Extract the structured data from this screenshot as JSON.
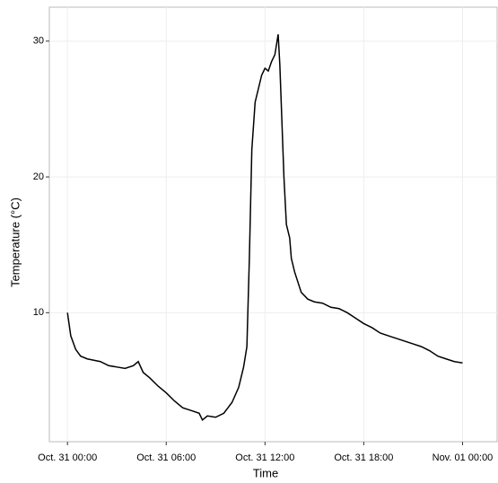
{
  "chart_data": {
    "type": "line",
    "x_label": "Time",
    "y_label": "Temperature (°C)",
    "x": [
      0,
      0.2,
      0.5,
      0.8,
      1.2,
      1.6,
      2,
      2.5,
      3,
      3.5,
      4,
      4.3,
      4.6,
      5,
      5.5,
      6,
      6.5,
      7,
      7.5,
      8,
      8.2,
      8.5,
      9,
      9.5,
      10,
      10.4,
      10.7,
      10.9,
      11.05,
      11.2,
      11.4,
      11.6,
      11.8,
      12,
      12.2,
      12.4,
      12.6,
      12.8,
      12.9,
      13,
      13.15,
      13.3,
      13.5,
      13.6,
      13.8,
      14.2,
      14.6,
      15,
      15.5,
      16,
      16.5,
      17,
      17.5,
      18,
      18.5,
      19,
      19.5,
      20,
      20.5,
      21,
      21.5,
      22,
      22.5,
      23,
      23.5,
      24
    ],
    "series": [
      {
        "name": "Temperature",
        "color": "#000000",
        "values": [
          10,
          8.3,
          7.3,
          6.8,
          6.6,
          6.5,
          6.4,
          6.1,
          6.0,
          5.9,
          6.1,
          6.4,
          5.6,
          5.2,
          4.6,
          4.1,
          3.5,
          3.0,
          2.8,
          2.6,
          2.1,
          2.4,
          2.3,
          2.6,
          3.4,
          4.5,
          6.0,
          7.5,
          14,
          22,
          25.5,
          26.5,
          27.5,
          28,
          27.8,
          28.5,
          29,
          30.5,
          28.3,
          25,
          20,
          16.5,
          15.5,
          14,
          13,
          11.5,
          11.0,
          10.8,
          10.7,
          10.4,
          10.3,
          10.0,
          9.6,
          9.2,
          8.9,
          8.5,
          8.3,
          8.1,
          7.9,
          7.7,
          7.5,
          7.2,
          6.8,
          6.6,
          6.4,
          6.3
        ]
      }
    ],
    "xlim": [
      -1.1,
      26.1
    ],
    "xticks": [
      {
        "value": 0,
        "label": "Oct. 31 00:00"
      },
      {
        "value": 6,
        "label": "Oct. 31 06:00"
      },
      {
        "value": 12,
        "label": "Oct. 31 12:00"
      },
      {
        "value": 18,
        "label": "Oct. 31 18:00"
      },
      {
        "value": 24,
        "label": "Nov. 01 00:00"
      }
    ],
    "ylim": [
      0.5,
      32.5
    ],
    "yticks": [
      10,
      20,
      30
    ],
    "grid": true
  }
}
